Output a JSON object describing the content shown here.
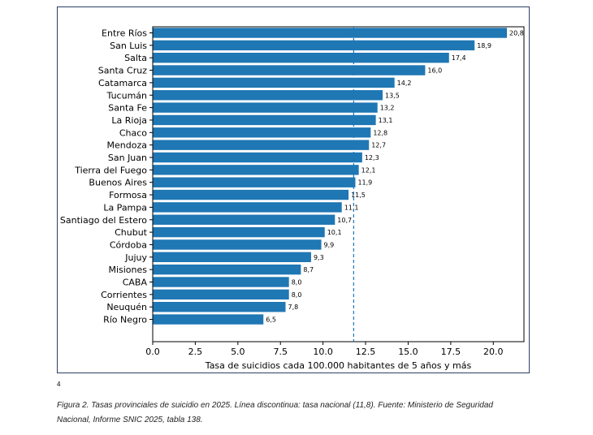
{
  "chart_data": {
    "type": "bar",
    "orientation": "horizontal",
    "categories": [
      "Entre Ríos",
      "San Luis",
      "Salta",
      "Santa Cruz",
      "Catamarca",
      "Tucumán",
      "Santa Fe",
      "La Rioja",
      "Chaco",
      "Mendoza",
      "San Juan",
      "Tierra del Fuego",
      "Buenos Aires",
      "Formosa",
      "La Pampa",
      "Santiago del Estero",
      "Chubut",
      "Córdoba",
      "Jujuy",
      "Misiones",
      "CABA",
      "Corrientes",
      "Neuquén",
      "Río Negro"
    ],
    "values": [
      20.8,
      18.9,
      17.4,
      16.0,
      14.2,
      13.5,
      13.2,
      13.1,
      12.8,
      12.7,
      12.3,
      12.1,
      11.9,
      11.5,
      11.1,
      10.7,
      10.1,
      9.9,
      9.3,
      8.7,
      8.0,
      8.0,
      7.8,
      6.5
    ],
    "value_labels": [
      "20,8",
      "18,9",
      "17,4",
      "16,0",
      "14,2",
      "13,5",
      "13,2",
      "13,1",
      "12,8",
      "12,7",
      "12,3",
      "12,1",
      "11,9",
      "11,5",
      "11,1",
      "10,7",
      "10,1",
      "9,9",
      "9,3",
      "8,7",
      "8,0",
      "8,0",
      "7,8",
      "6,5"
    ],
    "xlabel": "Tasa de suicidios cada 100.000 habitantes de 5 años y más",
    "xlim": [
      0,
      21.8
    ],
    "xticks": [
      0,
      2.5,
      5,
      7.5,
      10,
      12.5,
      15,
      17.5,
      20
    ],
    "xtick_labels": [
      "0.0",
      "2.5",
      "5.0",
      "7.5",
      "10.0",
      "12.5",
      "15.0",
      "17.5",
      "20.0"
    ],
    "reference_line": {
      "value": 11.8,
      "style": "dashed"
    },
    "grid": false,
    "bar_color": "#1f77b4"
  },
  "page_number": "4",
  "caption": "Figura 2. Tasas provinciales de suicidio en 2025. Línea discontinua: tasa nacional (11,8). Fuente: Ministerio de Seguridad Nacional, Informe SNIC 2025, tabla 138."
}
